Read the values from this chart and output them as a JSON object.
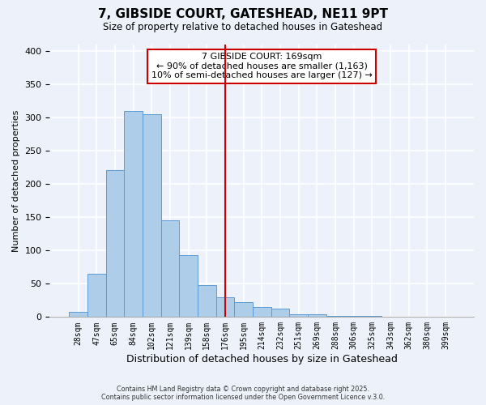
{
  "title": "7, GIBSIDE COURT, GATESHEAD, NE11 9PT",
  "subtitle": "Size of property relative to detached houses in Gateshead",
  "xlabel": "Distribution of detached houses by size in Gateshead",
  "ylabel": "Number of detached properties",
  "bar_labels": [
    "28sqm",
    "47sqm",
    "65sqm",
    "84sqm",
    "102sqm",
    "121sqm",
    "139sqm",
    "158sqm",
    "176sqm",
    "195sqm",
    "214sqm",
    "232sqm",
    "251sqm",
    "269sqm",
    "288sqm",
    "306sqm",
    "325sqm",
    "343sqm",
    "362sqm",
    "380sqm",
    "399sqm"
  ],
  "bar_values": [
    8,
    65,
    221,
    310,
    305,
    145,
    93,
    48,
    30,
    22,
    15,
    12,
    4,
    4,
    2,
    2,
    2,
    1,
    1,
    1,
    1
  ],
  "bar_color": "#aecde8",
  "bar_edge_color": "#5b9bd5",
  "vline_x": 8.0,
  "vline_color": "#cc0000",
  "annotation_title": "7 GIBSIDE COURT: 169sqm",
  "annotation_line1": "← 90% of detached houses are smaller (1,163)",
  "annotation_line2": "10% of semi-detached houses are larger (127) →",
  "annotation_box_color": "#ffffff",
  "annotation_box_edge_color": "#cc0000",
  "ylim": [
    0,
    410
  ],
  "yticks": [
    0,
    50,
    100,
    150,
    200,
    250,
    300,
    350,
    400
  ],
  "background_color": "#edf2fa",
  "grid_color": "#ffffff",
  "footer_line1": "Contains HM Land Registry data © Crown copyright and database right 2025.",
  "footer_line2": "Contains public sector information licensed under the Open Government Licence v.3.0."
}
